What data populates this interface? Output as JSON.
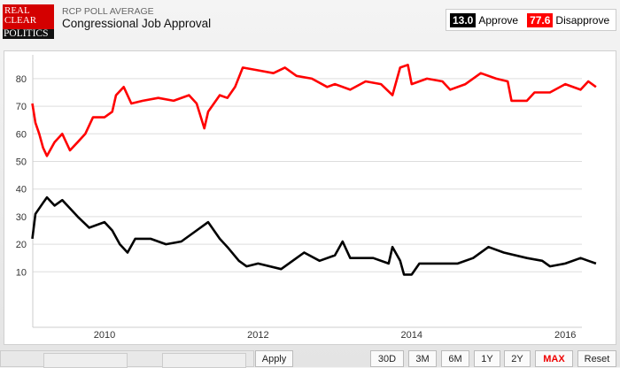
{
  "header": {
    "logo": [
      "REAL",
      "CLEAR",
      "POLITICS"
    ],
    "subtitle": "RCP POLL AVERAGE",
    "title": "Congressional Job Approval"
  },
  "legend": [
    {
      "value": "13.0",
      "label": "Approve",
      "color": "#000000"
    },
    {
      "value": "77.6",
      "label": "Disapprove",
      "color": "#ff0000"
    }
  ],
  "controls": {
    "apply": "Apply",
    "ranges": [
      "30D",
      "3M",
      "6M",
      "1Y",
      "2Y",
      "MAX",
      "Reset"
    ],
    "active": "MAX"
  },
  "chart_data": {
    "type": "line",
    "title": "Congressional Job Approval",
    "ylim": [
      0,
      90
    ],
    "xlim": [
      2009.06,
      2016.45
    ],
    "yticks": [
      10,
      20,
      30,
      40,
      50,
      60,
      70,
      80
    ],
    "xticks": [
      2010,
      2012,
      2014,
      2016
    ],
    "grid": true,
    "series": [
      {
        "name": "Approve",
        "color": "#000000",
        "x": [
          2009.06,
          2009.1,
          2009.2,
          2009.25,
          2009.35,
          2009.45,
          2009.55,
          2009.65,
          2009.8,
          2010.0,
          2010.1,
          2010.2,
          2010.3,
          2010.4,
          2010.6,
          2010.8,
          2011.0,
          2011.2,
          2011.35,
          2011.5,
          2011.6,
          2011.75,
          2011.85,
          2012.0,
          2012.3,
          2012.5,
          2012.6,
          2012.8,
          2013.0,
          2013.1,
          2013.2,
          2013.5,
          2013.7,
          2013.75,
          2013.85,
          2013.9,
          2014.0,
          2014.1,
          2014.4,
          2014.6,
          2014.8,
          2015.0,
          2015.2,
          2015.5,
          2015.7,
          2015.8,
          2016.0,
          2016.2,
          2016.3,
          2016.4
        ],
        "y": [
          22,
          31,
          35,
          37,
          34,
          36,
          33,
          30,
          26,
          28,
          25,
          20,
          17,
          22,
          22,
          20,
          21,
          25,
          28,
          22,
          19,
          14,
          12,
          13,
          11,
          15,
          17,
          14,
          16,
          21,
          15,
          15,
          13,
          19,
          14,
          9,
          9,
          13,
          13,
          13,
          15,
          19,
          17,
          15,
          14,
          12,
          13,
          15,
          14,
          13
        ]
      },
      {
        "name": "Disapprove",
        "color": "#ff0000",
        "x": [
          2009.06,
          2009.1,
          2009.15,
          2009.2,
          2009.25,
          2009.35,
          2009.45,
          2009.55,
          2009.65,
          2009.75,
          2009.85,
          2010.0,
          2010.1,
          2010.15,
          2010.25,
          2010.35,
          2010.5,
          2010.7,
          2010.9,
          2011.1,
          2011.2,
          2011.3,
          2011.35,
          2011.5,
          2011.6,
          2011.7,
          2011.8,
          2012.0,
          2012.2,
          2012.35,
          2012.5,
          2012.7,
          2012.9,
          2013.0,
          2013.2,
          2013.4,
          2013.6,
          2013.75,
          2013.85,
          2013.95,
          2014.0,
          2014.2,
          2014.4,
          2014.5,
          2014.7,
          2014.9,
          2015.1,
          2015.25,
          2015.3,
          2015.5,
          2015.6,
          2015.8,
          2016.0,
          2016.2,
          2016.3,
          2016.4
        ],
        "y": [
          71,
          64,
          60,
          55,
          52,
          57,
          60,
          54,
          57,
          60,
          66,
          66,
          68,
          74,
          77,
          71,
          72,
          73,
          72,
          74,
          71,
          62,
          68,
          74,
          73,
          77,
          84,
          83,
          82,
          84,
          81,
          80,
          77,
          78,
          76,
          79,
          78,
          74,
          84,
          85,
          78,
          80,
          79,
          76,
          78,
          82,
          80,
          79,
          72,
          72,
          75,
          75,
          78,
          76,
          79,
          77
        ]
      }
    ]
  }
}
